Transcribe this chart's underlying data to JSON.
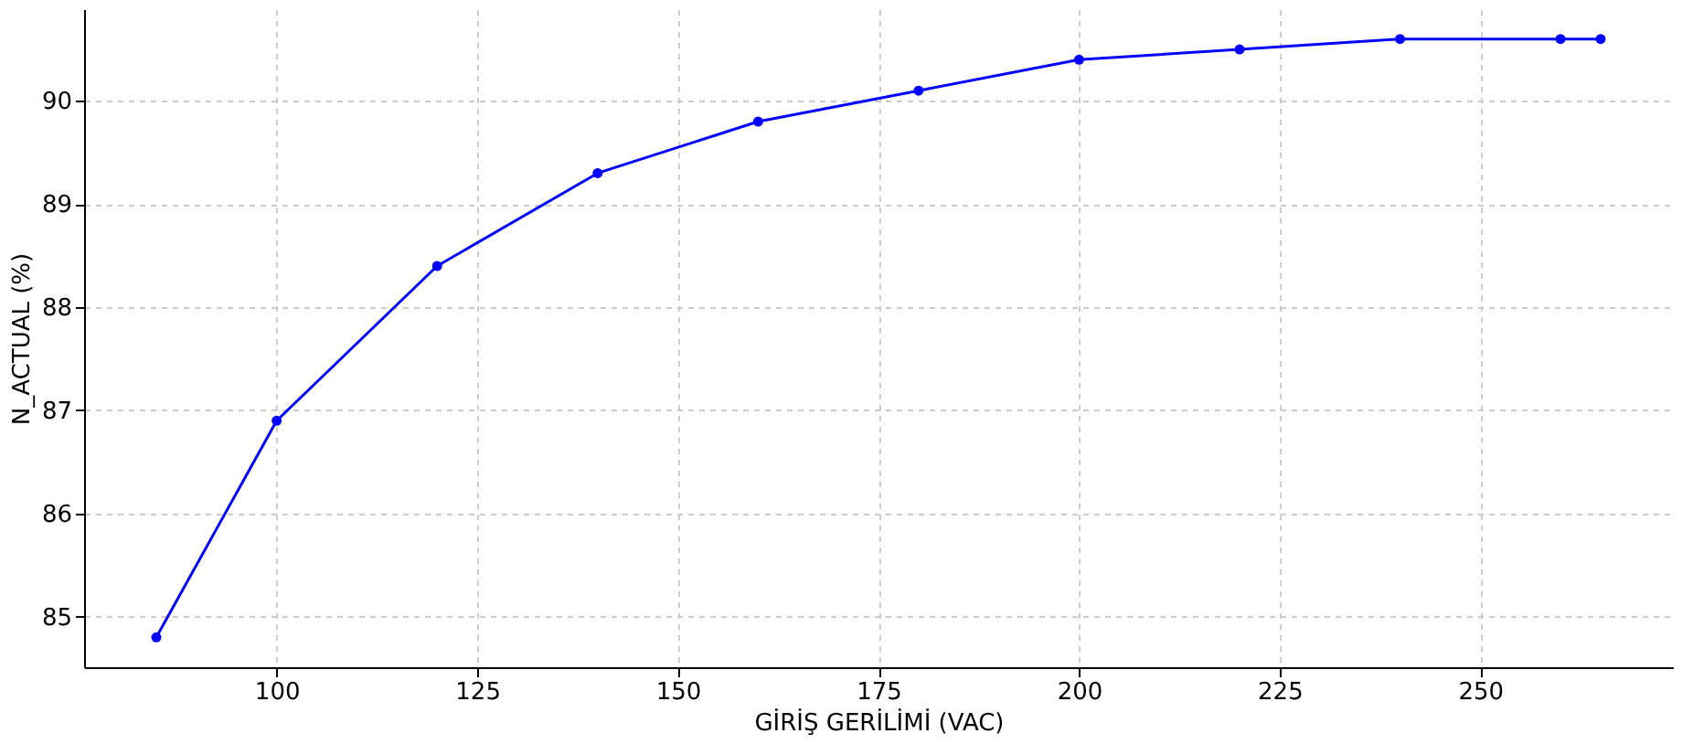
{
  "chart_data": {
    "type": "line",
    "xlabel": "GİRİŞ GERİLİMİ (VAC)",
    "ylabel": "N_ACTUAL (%)",
    "x": [
      85,
      100,
      120,
      140,
      160,
      180,
      200,
      220,
      240,
      260,
      265
    ],
    "series": [
      {
        "color": "#0000ff",
        "values": [
          84.8,
          86.9,
          88.4,
          89.3,
          89.8,
          90.1,
          90.4,
          90.5,
          90.6,
          90.6,
          90.6
        ]
      }
    ],
    "xlim": [
      76,
      274
    ],
    "xticks": [
      100,
      125,
      150,
      175,
      200,
      225,
      250
    ],
    "ylim": [
      84.51,
      90.89
    ],
    "yticks": [
      85,
      86,
      87,
      88,
      89,
      90
    ],
    "grid": true,
    "marker": "circle",
    "line_style": "solid"
  }
}
